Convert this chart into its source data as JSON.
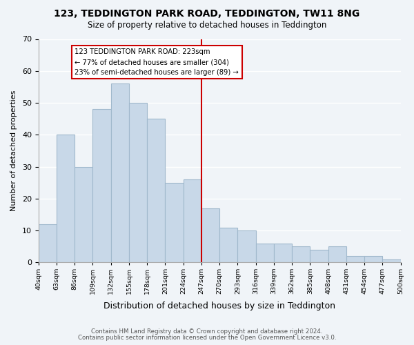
{
  "title": "123, TEDDINGTON PARK ROAD, TEDDINGTON, TW11 8NG",
  "subtitle": "Size of property relative to detached houses in Teddington",
  "xlabel": "Distribution of detached houses by size in Teddington",
  "ylabel": "Number of detached properties",
  "bin_labels": [
    "40sqm",
    "63sqm",
    "86sqm",
    "109sqm",
    "132sqm",
    "155sqm",
    "178sqm",
    "201sqm",
    "224sqm",
    "247sqm",
    "270sqm",
    "293sqm",
    "316sqm",
    "339sqm",
    "362sqm",
    "385sqm",
    "408sqm",
    "431sqm",
    "454sqm",
    "477sqm",
    "500sqm"
  ],
  "bar_heights": [
    12,
    40,
    30,
    48,
    56,
    50,
    45,
    25,
    26,
    17,
    11,
    10,
    6,
    6,
    5,
    4,
    5,
    2,
    2,
    1
  ],
  "bar_color": "#c8d8e8",
  "bar_edge_color": "#a0b8cc",
  "property_line_x": 8.5,
  "property_line_color": "#cc0000",
  "annotation_text_line1": "123 TEDDINGTON PARK ROAD: 223sqm",
  "annotation_text_line2": "← 77% of detached houses are smaller (304)",
  "annotation_text_line3": "23% of semi-detached houses are larger (89) →",
  "annotation_box_color": "#ffffff",
  "annotation_box_edge_color": "#cc0000",
  "ylim": [
    0,
    70
  ],
  "yticks": [
    0,
    10,
    20,
    30,
    40,
    50,
    60,
    70
  ],
  "footnote1": "Contains HM Land Registry data © Crown copyright and database right 2024.",
  "footnote2": "Contains public sector information licensed under the Open Government Licence v3.0.",
  "bg_color": "#f0f4f8"
}
